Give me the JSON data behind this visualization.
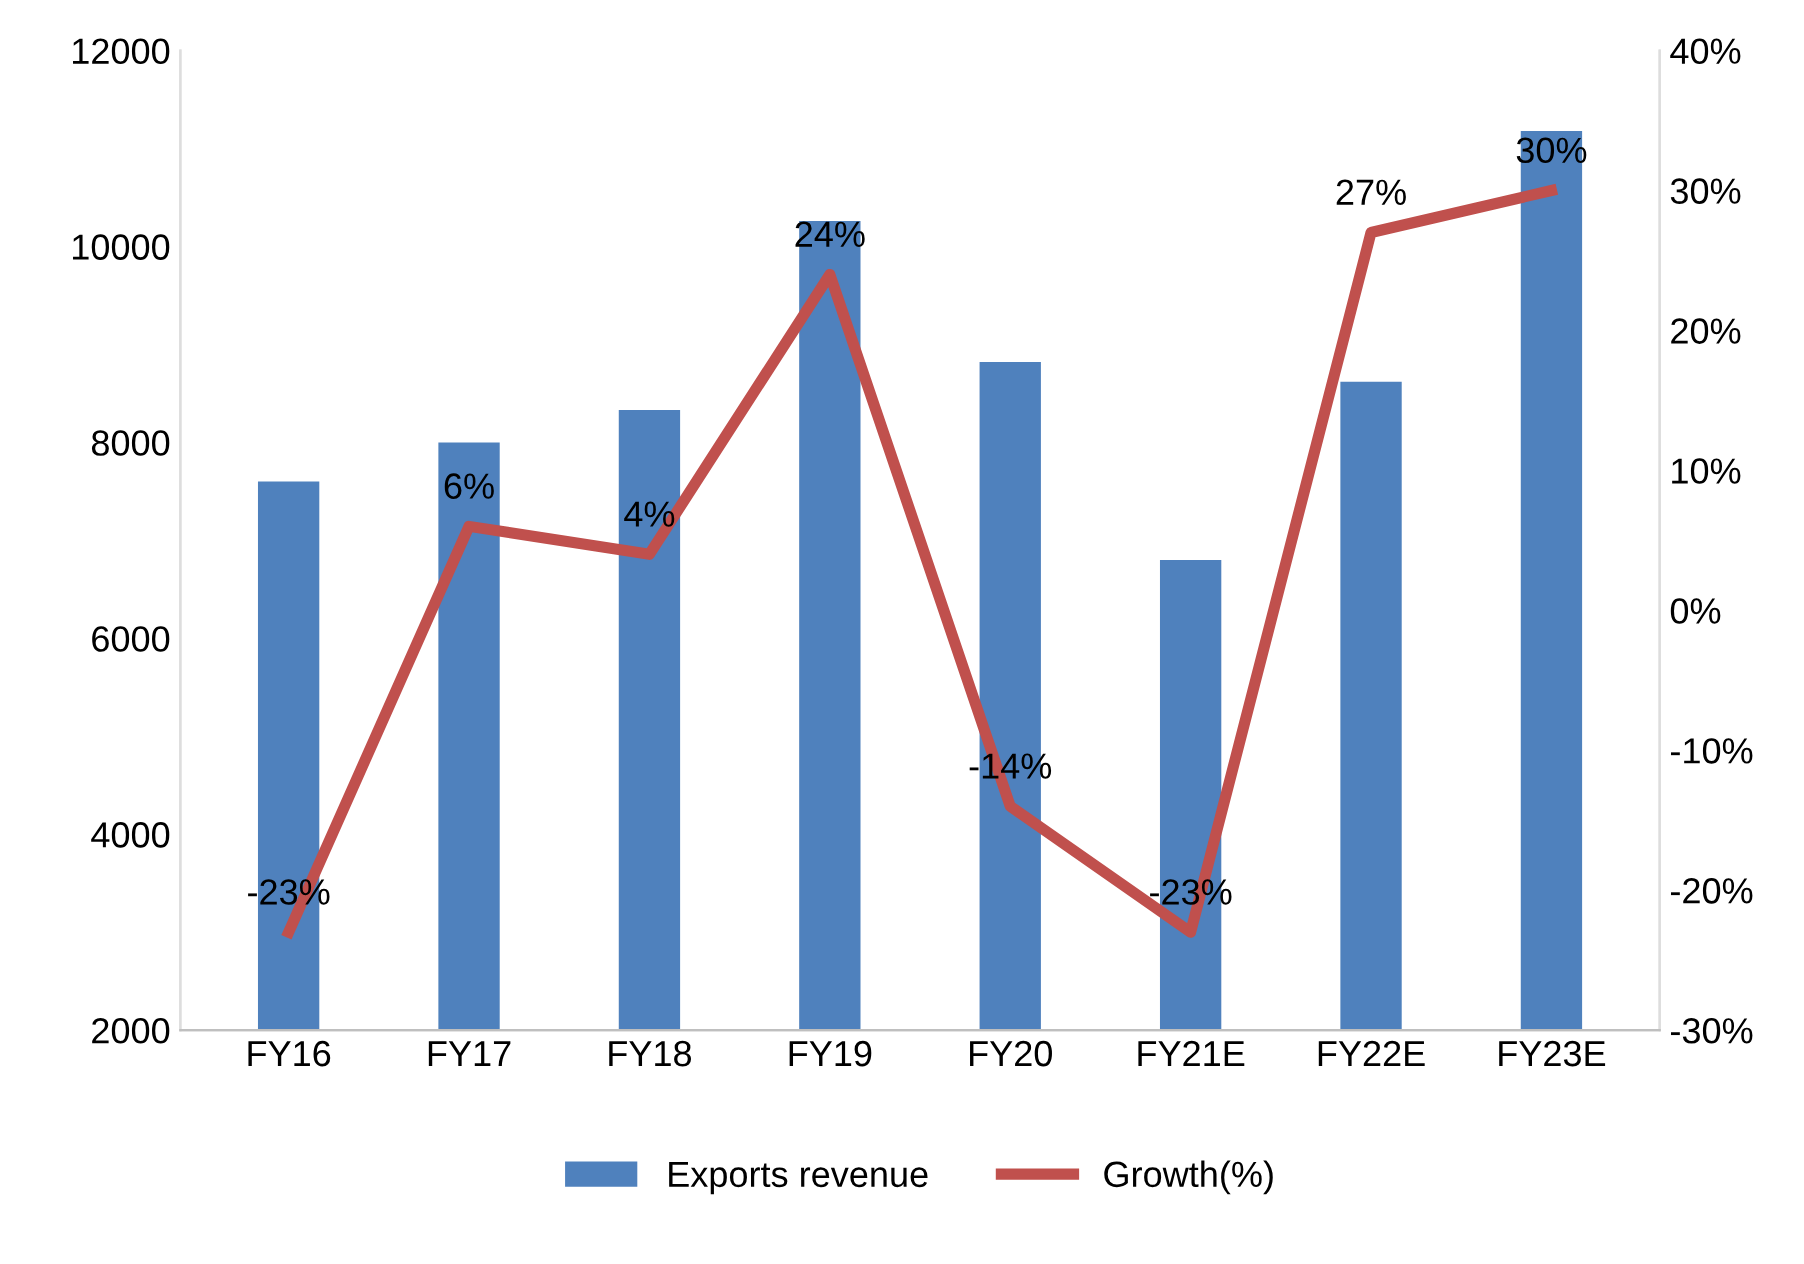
{
  "chart_data": {
    "type": "bar",
    "categories": [
      "FY16",
      "FY17",
      "FY18",
      "FY19",
      "FY20",
      "FY21E",
      "FY22E",
      "FY23E"
    ],
    "series": [
      {
        "name": "Exports revenue",
        "color": "#4f81bd",
        "values": [
          7600,
          8000,
          8330,
          10260,
          8820,
          6800,
          8620,
          11180
        ]
      },
      {
        "name": "Growth(%)",
        "type": "line",
        "axis": "y2",
        "color": "#c0504d",
        "values": [
          -23,
          6,
          4,
          24,
          -14,
          -23,
          27,
          30
        ],
        "value_labels": [
          "-23%",
          "6%",
          "4%",
          "24%",
          "-14%",
          "-23%",
          "27%",
          "30%"
        ]
      }
    ],
    "ylim": [
      2000,
      12000
    ],
    "yticks": [
      2000,
      4000,
      6000,
      8000,
      10000,
      12000
    ],
    "y2lim": [
      -30,
      40
    ],
    "y2ticks": [
      {
        "value": -30,
        "label": "-30%"
      },
      {
        "value": -20,
        "label": "-20%"
      },
      {
        "value": -10,
        "label": "-10%"
      },
      {
        "value": 0,
        "label": "0%"
      },
      {
        "value": 10,
        "label": "10%"
      },
      {
        "value": 20,
        "label": "20%"
      },
      {
        "value": 30,
        "label": "30%"
      },
      {
        "value": 40,
        "label": "40%"
      }
    ],
    "grid": false,
    "legend": "bottom",
    "marker": "none",
    "line_style": "solid"
  }
}
